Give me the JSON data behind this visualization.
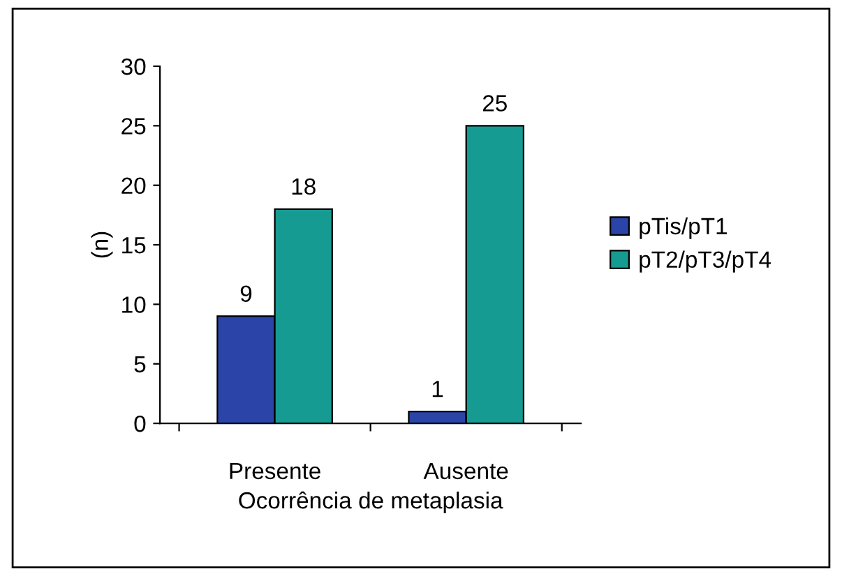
{
  "chart_data": {
    "type": "bar",
    "xlabel": "Ocorrência de metaplasia",
    "ylabel": "(n)",
    "categories": [
      "Presente",
      "Ausente"
    ],
    "series": [
      {
        "name": "pTis/pT1",
        "color": "#2a44a8",
        "values": [
          9,
          1
        ]
      },
      {
        "name": "pT2/pT3/pT4",
        "color": "#169b93",
        "values": [
          18,
          25
        ]
      }
    ],
    "ylim": [
      0,
      30
    ],
    "yticks": [
      0,
      5,
      10,
      15,
      20,
      25,
      30
    ],
    "grid": false,
    "legend": "right",
    "data_labels": true
  }
}
